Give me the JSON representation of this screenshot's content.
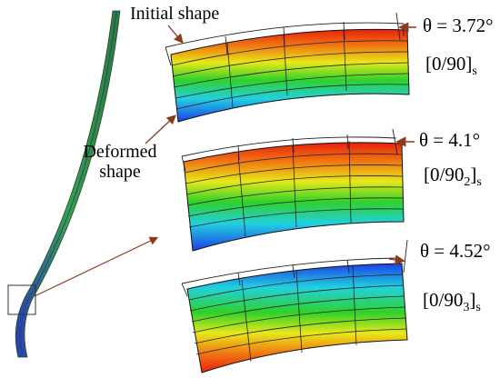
{
  "labels": {
    "initial_shape": "Initial shape",
    "deformed_line1": "Deformed",
    "deformed_line2": "shape"
  },
  "panels": [
    {
      "angle": "θ = 3.72°",
      "layup_prefix": "[0/90]",
      "layup_sub": "",
      "layup_suffix": "s",
      "gradient": "red-top"
    },
    {
      "angle": "θ = 4.1°",
      "layup_prefix": "[0/90",
      "layup_sub": "2",
      "layup_suffix": "]s",
      "gradient": "red-top"
    },
    {
      "angle": "θ = 4.52°",
      "layup_prefix": "[0/90",
      "layup_sub": "3",
      "layup_suffix": "]s",
      "gradient": "blue-top"
    }
  ],
  "colors": {
    "arrow": "#8B3A1A",
    "red": "#E8200C",
    "orange": "#F08A12",
    "yellow": "#E8E81A",
    "green": "#2FD12A",
    "cyan": "#22D0E0",
    "blue": "#1D3FE8",
    "specimen": "#3A8A4A"
  }
}
